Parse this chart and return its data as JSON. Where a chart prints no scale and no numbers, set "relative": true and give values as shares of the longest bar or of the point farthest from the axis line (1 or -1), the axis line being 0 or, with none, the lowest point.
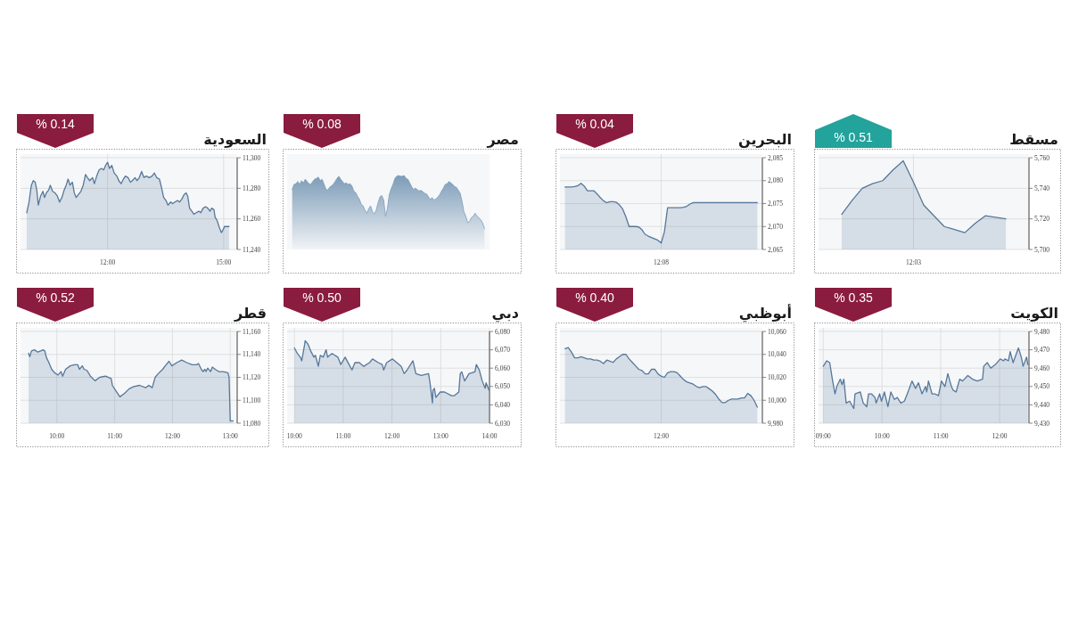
{
  "chart_data": [
    {
      "type": "area",
      "title": "مسقط",
      "annotations": [
        "% 0.51"
      ],
      "categories": [
        null,
        null,
        null,
        null,
        null,
        null,
        null,
        "12:03",
        null,
        null,
        null,
        null,
        null,
        null,
        null,
        null,
        null
      ],
      "values": [
        5723,
        5732,
        5740,
        5743,
        5745,
        5752,
        5758,
        5744,
        5729,
        5722,
        5715,
        5713,
        5711,
        5717,
        5722,
        5721,
        5720
      ],
      "color": "#56789a",
      "ylim": [
        5700,
        5760
      ],
      "yticks": [
        {
          "value": 5700,
          "label": "5,700"
        },
        {
          "value": 5720,
          "label": "5,720"
        },
        {
          "value": 5740,
          "label": "5,740"
        },
        {
          "value": 5760,
          "label": "5,760"
        }
      ],
      "grid": true
    },
    {
      "type": "area",
      "title": "البحرين",
      "annotations": [
        "% 0.04"
      ],
      "categories": [
        null,
        null,
        null,
        null,
        null,
        null,
        null,
        null,
        null,
        null,
        null,
        null,
        null,
        null,
        null,
        null,
        null,
        null,
        null,
        null,
        null,
        null,
        null,
        null,
        null,
        null,
        null,
        null,
        null,
        null,
        "12:08",
        null,
        null,
        null,
        null,
        null,
        null,
        null,
        null,
        null,
        null,
        null,
        null,
        null,
        null,
        null,
        null,
        null,
        null,
        null,
        null,
        null,
        null,
        null,
        null,
        null,
        null,
        null,
        null,
        null,
        null
      ],
      "values": [
        2078.6,
        2078.6,
        2078.6,
        2078.7,
        2078.9,
        2079.4,
        2078.8,
        2077.8,
        2077.8,
        2077.8,
        2077.1,
        2076.3,
        2075.6,
        2075.2,
        2075.4,
        2075.4,
        2075.3,
        2074.7,
        2073.8,
        2072.1,
        2070.0,
        2070.0,
        2070.0,
        2069.9,
        2069.3,
        2068.3,
        2067.9,
        2067.6,
        2067.3,
        2067.0,
        2066.4,
        2068.8,
        2074.1,
        2074.1,
        2074.1,
        2074.1,
        2074.1,
        2074.2,
        2074.4,
        2074.9,
        2075.2,
        2075.2,
        2075.2,
        2075.2,
        2075.2,
        2075.2,
        2075.2,
        2075.2,
        2075.2,
        2075.2,
        2075.2,
        2075.2,
        2075.2,
        2075.2,
        2075.2,
        2075.2,
        2075.2,
        2075.2,
        2075.2,
        2075.2,
        2075.2
      ],
      "color": "#56789a",
      "ylim": [
        2065,
        2085
      ],
      "yticks": [
        {
          "value": 2065,
          "label": "2,065"
        },
        {
          "value": 2070,
          "label": "2,070"
        },
        {
          "value": 2075,
          "label": "2,075"
        },
        {
          "value": 2080,
          "label": "2,080"
        },
        {
          "value": 2085,
          "label": "2,085"
        }
      ],
      "grid": true
    },
    {
      "type": "area",
      "title": "مصر",
      "annotations": [
        "% 0.08"
      ],
      "categories": [
        null,
        null,
        null,
        null,
        null,
        null,
        null,
        null,
        null,
        null,
        null,
        null,
        null,
        null,
        null,
        null,
        null,
        null,
        null,
        null,
        null,
        null,
        null,
        null,
        null,
        null,
        null,
        null,
        null,
        null,
        null,
        null,
        null,
        null,
        null,
        null,
        null,
        null,
        null,
        null,
        null,
        null,
        null,
        null,
        null,
        null,
        null,
        null,
        null,
        null,
        null,
        null,
        null,
        null,
        null,
        null,
        null,
        null,
        null,
        null,
        null,
        null,
        null,
        null,
        null,
        null,
        null,
        null,
        null,
        null,
        null,
        null,
        null,
        null,
        null,
        null,
        null,
        null,
        null,
        null,
        null,
        null,
        null,
        null,
        null,
        null,
        null,
        null,
        null,
        null,
        null,
        null,
        null,
        null,
        null,
        null,
        null,
        null,
        null,
        null,
        null,
        null,
        null,
        null
      ],
      "values": [
        0.81,
        0.88,
        0.89,
        0.92,
        0.88,
        0.93,
        0.9,
        0.95,
        0.92,
        0.89,
        0.88,
        0.92,
        0.95,
        0.96,
        0.98,
        0.93,
        0.95,
        0.89,
        0.82,
        0.8,
        0.84,
        0.86,
        0.88,
        0.92,
        0.96,
        0.99,
        0.95,
        0.92,
        0.89,
        0.9,
        0.88,
        0.89,
        0.86,
        0.79,
        0.77,
        0.72,
        0.68,
        0.61,
        0.59,
        0.53,
        0.49,
        0.55,
        0.59,
        0.51,
        0.48,
        0.53,
        0.63,
        0.71,
        0.73,
        0.67,
        0.45,
        0.55,
        0.74,
        0.82,
        0.88,
        0.96,
        0.99,
        1.0,
        0.99,
        0.99,
        1.0,
        0.96,
        0.95,
        0.9,
        0.85,
        0.81,
        0.83,
        0.81,
        0.79,
        0.8,
        0.78,
        0.76,
        0.75,
        0.71,
        0.68,
        0.7,
        0.67,
        0.68,
        0.71,
        0.74,
        0.79,
        0.83,
        0.88,
        0.89,
        0.92,
        0.9,
        0.88,
        0.85,
        0.84,
        0.8,
        0.76,
        0.65,
        0.51,
        0.45,
        0.36,
        0.38,
        0.43,
        0.45,
        0.49,
        0.45,
        0.43,
        0.4,
        0.36,
        0.28
      ],
      "color": "#7c9cb8",
      "relative": true
    },
    {
      "type": "area",
      "title": "السعودية",
      "annotations": [
        "% 0.14"
      ],
      "x": [
        9.91,
        9.97,
        10.03,
        10.08,
        10.13,
        10.17,
        10.21,
        10.27,
        10.33,
        10.37,
        10.42,
        10.48,
        10.52,
        10.58,
        10.64,
        10.7,
        10.76,
        10.82,
        10.88,
        10.93,
        10.98,
        11.03,
        11.09,
        11.14,
        11.19,
        11.25,
        11.31,
        11.37,
        11.43,
        11.48,
        11.54,
        11.61,
        11.66,
        11.72,
        11.78,
        11.84,
        11.9,
        11.95,
        12.0,
        12.05,
        12.11,
        12.17,
        12.24,
        12.29,
        12.35,
        12.41,
        12.46,
        12.53,
        12.59,
        12.64,
        12.71,
        12.76,
        12.82,
        12.88,
        12.94,
        13.0,
        13.08,
        13.15,
        13.21,
        13.27,
        13.34,
        13.39,
        13.45,
        13.51,
        13.56,
        13.63,
        13.68,
        13.74,
        13.81,
        13.86,
        13.92,
        13.98,
        14.03,
        14.07,
        14.12,
        14.18,
        14.23,
        14.29,
        14.36,
        14.41,
        14.47,
        14.53,
        14.59,
        14.65,
        14.69,
        14.75,
        14.78,
        14.83,
        14.88,
        14.94,
        14.99,
        15.02,
        15.08,
        15.14
      ],
      "values": [
        11264,
        11271,
        11282,
        11285,
        11284,
        11279,
        11269,
        11275,
        11278,
        11274,
        11277,
        11279,
        11282,
        11278,
        11277,
        11275,
        11271,
        11274,
        11279,
        11282,
        11286,
        11282,
        11284,
        11277,
        11274,
        11276,
        11278,
        11282,
        11289,
        11287,
        11285,
        11287,
        11283,
        11288,
        11292,
        11293,
        11292,
        11295,
        11297,
        11293,
        11295,
        11290,
        11288,
        11285,
        11283,
        11286,
        11288,
        11287,
        11284,
        11285,
        11287,
        11285,
        11287,
        11291,
        11287,
        11288,
        11287,
        11288,
        11290,
        11287,
        11286,
        11281,
        11274,
        11272,
        11269,
        11271,
        11270,
        11271,
        11272,
        11271,
        11273,
        11276,
        11277,
        11275,
        11267,
        11265,
        11263,
        11264,
        11265,
        11264,
        11267,
        11268,
        11267,
        11265,
        11267,
        11266,
        11261,
        11259,
        11255,
        11251,
        11253,
        11255,
        11255,
        11255
      ],
      "color": "#56789a",
      "xlim": [
        9.75,
        15.35
      ],
      "xticks": [
        {
          "value": 12,
          "label": "12:00"
        },
        {
          "value": 15,
          "label": "15:00"
        }
      ],
      "ylim": [
        11240,
        11300
      ],
      "yticks": [
        {
          "value": 11240,
          "label": "11,240"
        },
        {
          "value": 11260,
          "label": "11,260"
        },
        {
          "value": 11280,
          "label": "11,280"
        },
        {
          "value": 11300,
          "label": "11,300"
        }
      ],
      "grid": true
    },
    {
      "type": "area",
      "title": "الكويت",
      "annotations": [
        "% 0.35"
      ],
      "x": [
        9.0,
        9.06,
        9.11,
        9.16,
        9.2,
        9.23,
        9.29,
        9.32,
        9.35,
        9.39,
        9.45,
        9.52,
        9.54,
        9.63,
        9.68,
        9.74,
        9.77,
        9.82,
        9.88,
        9.9,
        9.96,
        9.99,
        10.04,
        10.1,
        10.15,
        10.21,
        10.26,
        10.32,
        10.38,
        10.43,
        10.51,
        10.57,
        10.62,
        10.68,
        10.74,
        10.76,
        10.79,
        10.85,
        10.9,
        10.96,
        11.01,
        11.07,
        11.12,
        11.18,
        11.21,
        11.26,
        11.32,
        11.37,
        11.46,
        11.54,
        11.62,
        11.71,
        11.73,
        11.79,
        11.85,
        11.93,
        12.01,
        12.07,
        12.09,
        12.15,
        12.18,
        12.23,
        12.32,
        12.37,
        12.4,
        12.46,
        12.48
      ],
      "values": [
        9461,
        9464,
        9463,
        9453,
        9446,
        9450,
        9454,
        9451,
        9454,
        9441,
        9442,
        9438,
        9446,
        9447,
        9441,
        9439,
        9446,
        9446,
        9444,
        9441,
        9446,
        9442,
        9447,
        9439,
        9447,
        9443,
        9444,
        9441,
        9442,
        9446,
        9453,
        9449,
        9452,
        9446,
        9450,
        9447,
        9453,
        9446,
        9446,
        9445,
        9453,
        9450,
        9457,
        9450,
        9448,
        9447,
        9454,
        9453,
        9456,
        9454,
        9453,
        9454,
        9461,
        9463,
        9460,
        9462,
        9465,
        9464,
        9465,
        9464,
        9469,
        9463,
        9471,
        9466,
        9461,
        9466,
        9462
      ],
      "color": "#56789a",
      "xlim": [
        8.92,
        12.5
      ],
      "xticks": [
        {
          "value": 9,
          "label": "09:00"
        },
        {
          "value": 10,
          "label": "10:00"
        },
        {
          "value": 11,
          "label": "11:00"
        },
        {
          "value": 12,
          "label": "12:00"
        }
      ],
      "ylim": [
        9430,
        9480
      ],
      "yticks": [
        {
          "value": 9430,
          "label": "9,430"
        },
        {
          "value": 9440,
          "label": "9,440"
        },
        {
          "value": 9450,
          "label": "9,450"
        },
        {
          "value": 9460,
          "label": "9,460"
        },
        {
          "value": 9470,
          "label": "9,470"
        },
        {
          "value": 9480,
          "label": "9,480"
        }
      ],
      "grid": true
    },
    {
      "type": "area",
      "title": "أبوظبي",
      "annotations": [
        "% 0.40"
      ],
      "categories": [
        null,
        null,
        null,
        null,
        null,
        null,
        null,
        null,
        null,
        null,
        null,
        null,
        null,
        null,
        null,
        null,
        null,
        null,
        null,
        null,
        null,
        null,
        null,
        null,
        null,
        null,
        null,
        null,
        null,
        null,
        "12:00",
        null,
        null,
        null,
        null,
        null,
        null,
        null,
        null,
        null,
        null,
        null,
        null,
        null,
        null,
        null,
        null,
        null,
        null,
        null,
        null,
        null,
        null,
        null,
        null,
        null,
        null,
        null,
        null,
        null,
        null
      ],
      "values": [
        10045,
        10046,
        10042,
        10037,
        10037,
        10038,
        10037,
        10036,
        10036,
        10035,
        10035,
        10034,
        10032,
        10035,
        10034,
        10033,
        10036,
        10038,
        10040,
        10040,
        10036,
        10033,
        10030,
        10027,
        10026,
        10023,
        10023,
        10027,
        10027,
        10023,
        10021,
        10020,
        10024,
        10025,
        10025,
        10024,
        10021,
        10018,
        10016,
        10015,
        10014,
        10012,
        10011,
        10012,
        10012,
        10010,
        10008,
        10005,
        10001,
        9998,
        9998,
        10000,
        10001,
        10001,
        10001,
        10002,
        10002,
        10006,
        10004,
        10000,
        9994
      ],
      "color": "#56789a",
      "ylim": [
        9980,
        10060
      ],
      "yticks": [
        {
          "value": 9980,
          "label": "9,980"
        },
        {
          "value": 10000,
          "label": "10,000"
        },
        {
          "value": 10020,
          "label": "10,020"
        },
        {
          "value": 10040,
          "label": "10,040"
        },
        {
          "value": 10060,
          "label": "10,060"
        }
      ],
      "grid": true
    },
    {
      "type": "area",
      "title": "دبي",
      "annotations": [
        "% 0.50"
      ],
      "x": [
        10.0,
        10.06,
        10.12,
        10.15,
        10.21,
        10.22,
        10.28,
        10.34,
        10.4,
        10.43,
        10.49,
        10.53,
        10.59,
        10.65,
        10.68,
        10.77,
        10.89,
        10.95,
        11.04,
        11.12,
        11.18,
        11.24,
        11.33,
        11.42,
        11.54,
        11.6,
        11.72,
        11.8,
        11.83,
        11.89,
        12.01,
        12.1,
        12.19,
        12.25,
        12.31,
        12.43,
        12.49,
        12.6,
        12.75,
        12.78,
        12.83,
        12.84,
        12.87,
        12.9,
        12.99,
        13.08,
        13.22,
        13.28,
        13.37,
        13.4,
        13.43,
        13.49,
        13.58,
        13.7,
        13.73,
        13.79,
        13.85,
        13.91,
        13.93,
        13.99
      ],
      "values": [
        6071,
        6068,
        6066,
        6064,
        6073,
        6075,
        6073,
        6069,
        6066,
        6067,
        6061,
        6067,
        6066,
        6070,
        6066,
        6068,
        6066,
        6062,
        6066,
        6062,
        6059,
        6063,
        6063,
        6061,
        6063,
        6065,
        6063,
        6062,
        6059,
        6063,
        6065,
        6063,
        6061,
        6057,
        6059,
        6064,
        6057,
        6056,
        6057,
        6052,
        6041,
        6048,
        6049,
        6044,
        6047,
        6047,
        6045,
        6045,
        6047,
        6057,
        6058,
        6053,
        6057,
        6058,
        6062,
        6059,
        6053,
        6049,
        6052,
        6048
      ],
      "color": "#56789a",
      "xlim": [
        9.85,
        14
      ],
      "xticks": [
        {
          "value": 10,
          "label": "10:00"
        },
        {
          "value": 11,
          "label": "11:00"
        },
        {
          "value": 12,
          "label": "12:00"
        },
        {
          "value": 13,
          "label": "13:00"
        },
        {
          "value": 14,
          "label": "14:00"
        }
      ],
      "ylim": [
        6030,
        6080
      ],
      "yticks": [
        {
          "value": 6030,
          "label": "6,030"
        },
        {
          "value": 6040,
          "label": "6,040"
        },
        {
          "value": 6050,
          "label": "6,050"
        },
        {
          "value": 6060,
          "label": "6,060"
        },
        {
          "value": 6070,
          "label": "6,070"
        },
        {
          "value": 6080,
          "label": "6,080"
        }
      ],
      "grid": true
    },
    {
      "type": "area",
      "title": "قطر",
      "annotations": [
        "% 0.52"
      ],
      "x": [
        9.51,
        9.53,
        9.56,
        9.61,
        9.67,
        9.72,
        9.76,
        9.79,
        9.82,
        9.86,
        9.91,
        9.96,
        10.02,
        10.07,
        10.1,
        10.15,
        10.23,
        10.3,
        10.36,
        10.39,
        10.44,
        10.47,
        10.52,
        10.58,
        10.66,
        10.74,
        10.84,
        10.94,
        10.96,
        11.01,
        11.09,
        11.17,
        11.25,
        11.33,
        11.43,
        11.54,
        11.59,
        11.65,
        11.7,
        11.75,
        11.83,
        11.89,
        11.94,
        11.99,
        12.08,
        12.16,
        12.24,
        12.34,
        12.42,
        12.45,
        12.5,
        12.53,
        12.56,
        12.58,
        12.61,
        12.66,
        12.69,
        12.74,
        12.8,
        12.88,
        12.96,
        12.98,
        13.0,
        13.05
      ],
      "values": [
        11141,
        11138,
        11143,
        11144,
        11142,
        11143,
        11144,
        11143,
        11137,
        11133,
        11127,
        11124,
        11122,
        11125,
        11121,
        11127,
        11130,
        11131,
        11131,
        11127,
        11130,
        11127,
        11126,
        11121,
        11117,
        11120,
        11121,
        11119,
        11113,
        11109,
        11103,
        11106,
        11110,
        11112,
        11113,
        11111,
        11113,
        11111,
        11120,
        11123,
        11127,
        11131,
        11134,
        11130,
        11133,
        11135,
        11133,
        11131,
        11131,
        11132,
        11127,
        11125,
        11127,
        11125,
        11128,
        11125,
        11129,
        11127,
        11125,
        11125,
        11124,
        11120,
        11082,
        11082
      ],
      "color": "#56789a",
      "xlim": [
        9.37,
        13.12
      ],
      "xticks": [
        {
          "value": 10,
          "label": "10:00"
        },
        {
          "value": 11,
          "label": "11:00"
        },
        {
          "value": 12,
          "label": "12:00"
        },
        {
          "value": 13,
          "label": "13:00"
        }
      ],
      "ylim": [
        11080,
        11160
      ],
      "yticks": [
        {
          "value": 11080,
          "label": "11,080"
        },
        {
          "value": 11100,
          "label": "11,100"
        },
        {
          "value": 11120,
          "label": "11,120"
        },
        {
          "value": 11140,
          "label": "11,140"
        },
        {
          "value": 11160,
          "label": "11,160"
        }
      ],
      "grid": true
    }
  ]
}
